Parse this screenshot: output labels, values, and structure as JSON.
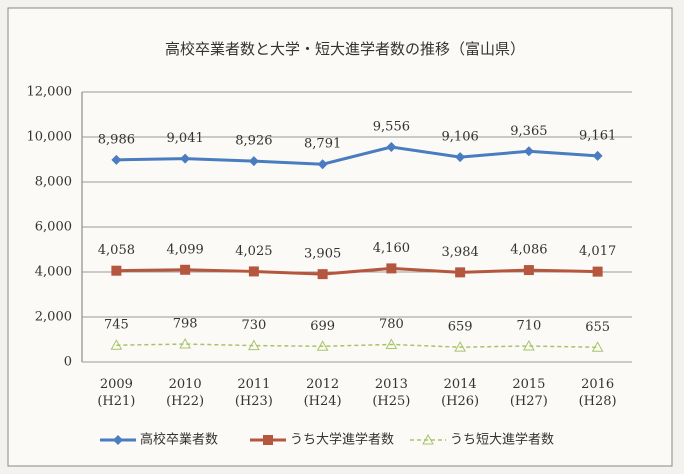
{
  "chart_data": {
    "type": "line",
    "title": "高校卒業者数と大学・短大進学者数の推移（富山県）",
    "categories": [
      "2009\n(H21)",
      "2010\n(H22)",
      "2011\n(H23)",
      "2012\n(H24)",
      "2013\n(H25)",
      "2014\n(H26)",
      "2015\n(H27)",
      "2016\n(H28)"
    ],
    "series": [
      {
        "name": "高校卒業者数",
        "color": "#4a7cc0",
        "values": [
          8986,
          9041,
          8926,
          8791,
          9556,
          9106,
          9365,
          9161
        ],
        "value_labels": [
          "8,986",
          "9,041",
          "8,926",
          "8,791",
          "9,556",
          "9,106",
          "9,365",
          "9,161"
        ]
      },
      {
        "name": "うち大学進学者数",
        "color": "#b5573f",
        "values": [
          4058,
          4099,
          4025,
          3905,
          4160,
          3984,
          4086,
          4017
        ],
        "value_labels": [
          "4,058",
          "4,099",
          "4,025",
          "3,905",
          "4,160",
          "3,984",
          "4,086",
          "4,017"
        ]
      },
      {
        "name": "うち短大進学者数",
        "color": "#a8c46a",
        "values": [
          745,
          798,
          730,
          699,
          780,
          659,
          710,
          655
        ]
      }
    ],
    "ylim": [
      0,
      12000
    ],
    "yticks": [
      0,
      {
        "value": 2000,
        "label": "2,000"
      },
      {
        "value": 4000,
        "label": "4,000"
      },
      {
        "value": 6000,
        "label": "6,000"
      },
      {
        "value": 8000,
        "label": "8,000"
      },
      {
        "value": 10000,
        "label": "10,000"
      },
      {
        "value": 12000,
        "label": "12,000"
      }
    ],
    "grid": true,
    "legend": "bottom"
  }
}
